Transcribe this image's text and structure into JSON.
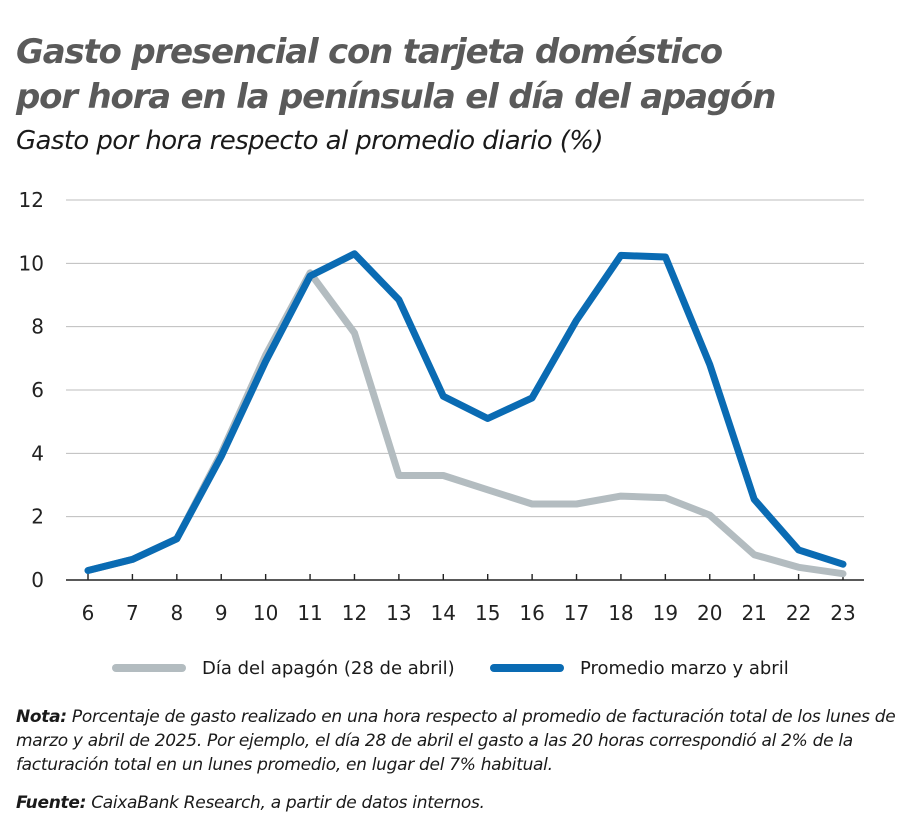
{
  "header": {
    "title_line1": "Gasto presencial con tarjeta doméstico",
    "title_line2": "por hora en la península el día del apagón",
    "subtitle": "Gasto por hora respecto al promedio diario (%)"
  },
  "chart_data": {
    "type": "line",
    "x": [
      6,
      7,
      8,
      9,
      10,
      11,
      12,
      13,
      14,
      15,
      16,
      17,
      18,
      19,
      20,
      21,
      22,
      23
    ],
    "ylim": [
      0,
      12
    ],
    "yticks": [
      0,
      2,
      4,
      6,
      8,
      10,
      12
    ],
    "grid": true,
    "legend_position": "bottom",
    "series": [
      {
        "name": "Día del apagón (28 de abril)",
        "color": "#b3bcc0",
        "values": [
          0.3,
          0.65,
          1.3,
          4.0,
          7.1,
          9.7,
          7.8,
          3.3,
          3.3,
          2.85,
          2.4,
          2.4,
          2.65,
          2.6,
          2.05,
          0.8,
          0.4,
          0.2
        ]
      },
      {
        "name": "Promedio marzo y abril",
        "color": "#0a6bb3",
        "values": [
          0.3,
          0.65,
          1.3,
          3.9,
          6.9,
          9.6,
          10.3,
          8.85,
          5.8,
          5.1,
          5.75,
          8.2,
          10.25,
          10.2,
          6.8,
          2.55,
          0.95,
          0.5
        ]
      }
    ]
  },
  "notes": {
    "note_label": "Nota:",
    "note_text": "Porcentaje de gasto realizado en una hora respecto al promedio de facturación total de los lunes de marzo y abril de 2025. Por ejemplo, el día 28 de abril el gasto a las 20 horas correspondió al 2% de la facturación total en un lunes promedio, en lugar del 7% habitual.",
    "source_label": "Fuente:",
    "source_text": "CaixaBank Research, a partir de datos internos."
  }
}
